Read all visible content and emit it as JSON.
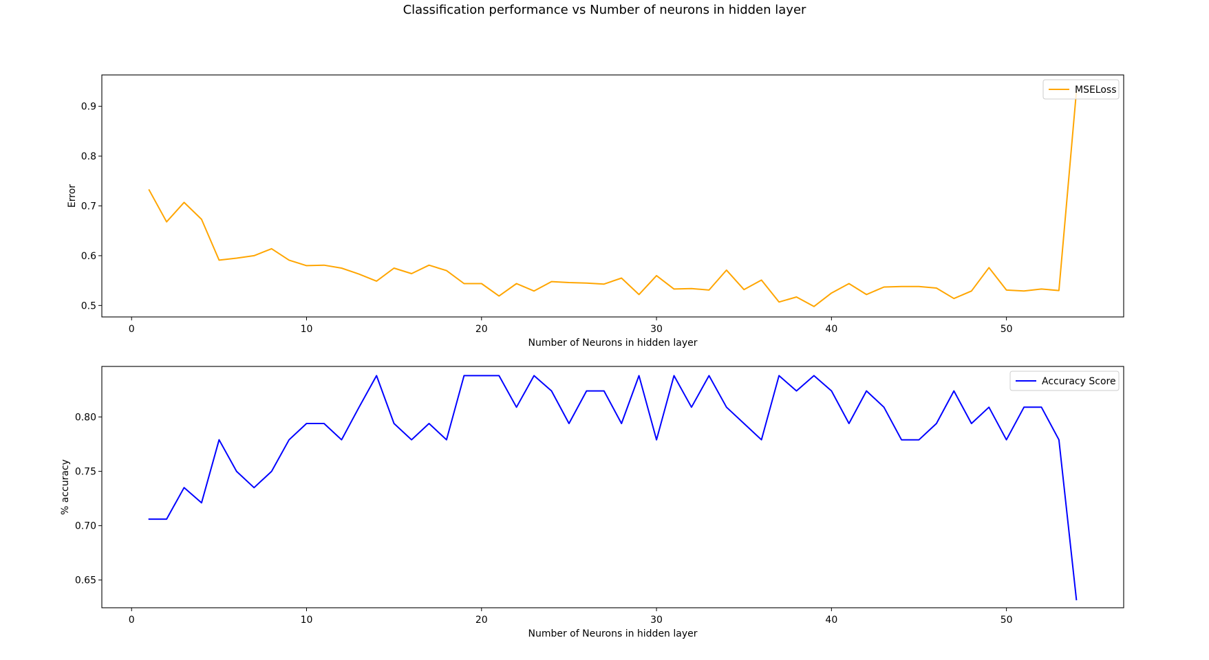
{
  "figure": {
    "title": "Classification performance vs Number of neurons in hidden layer"
  },
  "chart_data": [
    {
      "type": "line",
      "xlabel": "Number of Neurons in hidden layer",
      "ylabel": "Error",
      "xlim": [
        -1.7,
        56.7
      ],
      "ylim": [
        0.477,
        0.963
      ],
      "xticks": [
        0,
        10,
        20,
        30,
        40,
        50
      ],
      "yticks": [
        0.5,
        0.6,
        0.7,
        0.8,
        0.9
      ],
      "ytick_labels": [
        "0.5",
        "0.6",
        "0.7",
        "0.8",
        "0.9"
      ],
      "legend_position": "top-right",
      "grid": false,
      "series": [
        {
          "name": "MSELoss",
          "color": "#ffa500",
          "x": [
            1,
            2,
            3,
            4,
            5,
            6,
            7,
            8,
            9,
            10,
            11,
            12,
            13,
            14,
            15,
            16,
            17,
            18,
            19,
            20,
            21,
            22,
            23,
            24,
            25,
            26,
            27,
            28,
            29,
            30,
            31,
            32,
            33,
            34,
            35,
            36,
            37,
            38,
            39,
            40,
            41,
            42,
            43,
            44,
            45,
            46,
            47,
            48,
            49,
            50,
            51,
            52,
            53,
            54
          ],
          "values": [
            0.732,
            0.668,
            0.707,
            0.673,
            0.591,
            0.595,
            0.6,
            0.614,
            0.591,
            0.58,
            0.581,
            0.575,
            0.563,
            0.549,
            0.575,
            0.564,
            0.581,
            0.57,
            0.544,
            0.544,
            0.519,
            0.544,
            0.529,
            0.548,
            0.546,
            0.545,
            0.543,
            0.555,
            0.522,
            0.56,
            0.533,
            0.534,
            0.531,
            0.571,
            0.532,
            0.551,
            0.507,
            0.517,
            0.498,
            0.525,
            0.544,
            0.522,
            0.537,
            0.538,
            0.538,
            0.535,
            0.514,
            0.529,
            0.576,
            0.531,
            0.529,
            0.533,
            0.53,
            0.93
          ]
        }
      ]
    },
    {
      "type": "line",
      "xlabel": "Number of Neurons in hidden layer",
      "ylabel": "% accuracy",
      "xlim": [
        -1.7,
        56.7
      ],
      "ylim": [
        0.6245,
        0.8465
      ],
      "xticks": [
        0,
        10,
        20,
        30,
        40,
        50
      ],
      "yticks": [
        0.65,
        0.7,
        0.75,
        0.8
      ],
      "ytick_labels": [
        "0.65",
        "0.70",
        "0.75",
        "0.80"
      ],
      "legend_position": "top-right",
      "grid": false,
      "series": [
        {
          "name": "Accuracy Score",
          "color": "#0000ff",
          "x": [
            1,
            2,
            3,
            4,
            5,
            6,
            7,
            8,
            9,
            10,
            11,
            12,
            13,
            14,
            15,
            16,
            17,
            18,
            19,
            20,
            21,
            22,
            23,
            24,
            25,
            26,
            27,
            28,
            29,
            30,
            31,
            32,
            33,
            34,
            35,
            36,
            37,
            38,
            39,
            40,
            41,
            42,
            43,
            44,
            45,
            46,
            47,
            48,
            49,
            50,
            51,
            52,
            53,
            54
          ],
          "values": [
            0.706,
            0.706,
            0.735,
            0.721,
            0.779,
            0.75,
            0.735,
            0.75,
            0.779,
            0.794,
            0.794,
            0.779,
            0.809,
            0.838,
            0.794,
            0.779,
            0.794,
            0.779,
            0.838,
            0.838,
            0.838,
            0.809,
            0.838,
            0.824,
            0.794,
            0.824,
            0.824,
            0.794,
            0.838,
            0.779,
            0.838,
            0.809,
            0.838,
            0.809,
            0.794,
            0.779,
            0.838,
            0.824,
            0.838,
            0.824,
            0.794,
            0.824,
            0.809,
            0.779,
            0.779,
            0.794,
            0.824,
            0.794,
            0.809,
            0.779,
            0.809,
            0.809,
            0.779,
            0.632
          ]
        }
      ]
    }
  ]
}
